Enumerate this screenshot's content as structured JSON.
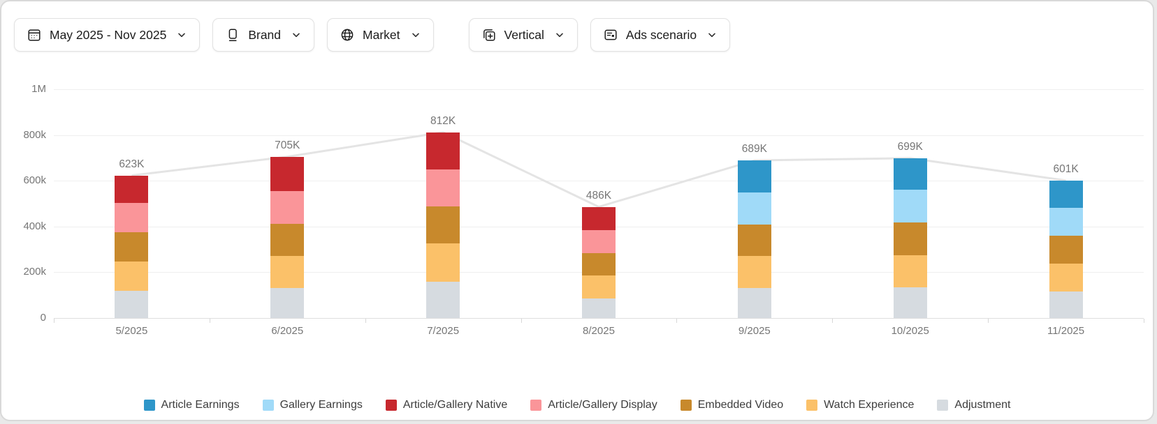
{
  "filters": [
    {
      "label": "May 2025 - Nov 2025",
      "icon": "calendar-icon"
    },
    {
      "label": "Brand",
      "icon": "brand-icon"
    },
    {
      "label": "Market",
      "icon": "globe-icon"
    },
    {
      "label": "Vertical",
      "icon": "vertical-icon"
    },
    {
      "label": "Ads scenario",
      "icon": "ads-scenario-icon"
    }
  ],
  "chart_data": {
    "type": "bar",
    "stacked": true,
    "overlay_line_on_totals": true,
    "title": "",
    "xlabel": "",
    "ylabel": "",
    "ylim": [
      0,
      1000000
    ],
    "y_ticks": [
      "1M",
      "800k",
      "600k",
      "400k",
      "200k",
      "0"
    ],
    "grid": true,
    "legend_position": "bottom",
    "categories": [
      "5/2025",
      "6/2025",
      "7/2025",
      "8/2025",
      "9/2025",
      "10/2025",
      "11/2025"
    ],
    "totals": [
      623000,
      705000,
      812000,
      486000,
      689000,
      699000,
      601000
    ],
    "totals_labels": [
      "623K",
      "705K",
      "812K",
      "486K",
      "689K",
      "699K",
      "601K"
    ],
    "series": [
      {
        "name": "Article Earnings",
        "color": "#2E96C9",
        "values": [
          0,
          0,
          0,
          0,
          139000,
          139000,
          118000
        ]
      },
      {
        "name": "Gallery Earnings",
        "color": "#A0DAF8",
        "values": [
          0,
          0,
          0,
          0,
          140000,
          142000,
          123000
        ]
      },
      {
        "name": "Article/Gallery Native",
        "color": "#C7282E",
        "values": [
          120000,
          150000,
          162000,
          102000,
          0,
          0,
          0
        ]
      },
      {
        "name": "Article/Gallery Display",
        "color": "#FA9599",
        "values": [
          128000,
          143000,
          163000,
          101000,
          0,
          0,
          0
        ]
      },
      {
        "name": "Embedded Video",
        "color": "#C8892C",
        "values": [
          127000,
          142000,
          162000,
          98000,
          140000,
          143000,
          122000
        ]
      },
      {
        "name": "Watch Experience",
        "color": "#FBC169",
        "values": [
          128000,
          140000,
          165000,
          100000,
          140000,
          140000,
          123000
        ]
      },
      {
        "name": "Adjustment",
        "color": "#D6DBE0",
        "values": [
          120000,
          130000,
          160000,
          85000,
          130000,
          135000,
          115000
        ]
      }
    ],
    "line_color": "#E4E4E4",
    "stack_order_bottom_to_top": [
      "Adjustment",
      "Watch Experience",
      "Embedded Video",
      "Article/Gallery Display",
      "Article/Gallery Native",
      "Gallery Earnings",
      "Article Earnings"
    ]
  }
}
